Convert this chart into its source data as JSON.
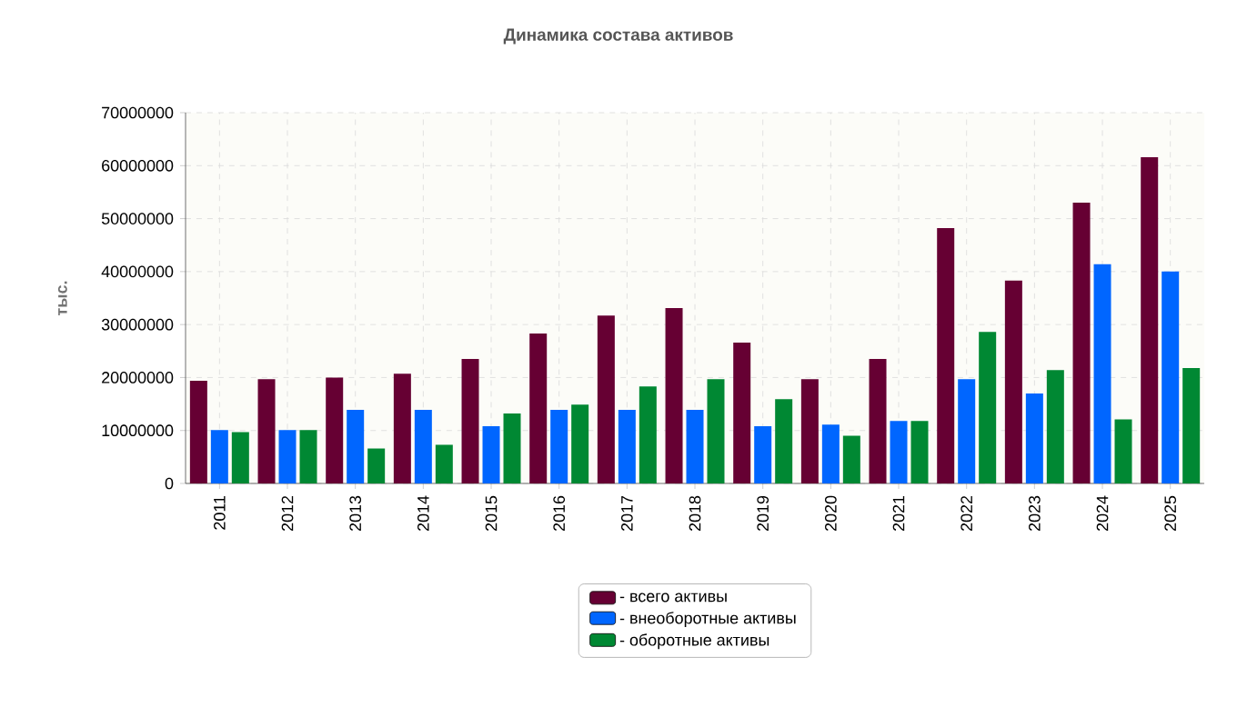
{
  "chart_data": {
    "type": "bar",
    "title": "Динамика состава активов",
    "ylabel": "тыс.",
    "categories": [
      "2011",
      "2012",
      "2013",
      "2014",
      "2015",
      "2016",
      "2017",
      "2018",
      "2019",
      "2020",
      "2021",
      "2022",
      "2023",
      "2024",
      "2025"
    ],
    "series": [
      {
        "name": "- всего активы",
        "color": "#660033",
        "values": [
          19400000,
          19700000,
          20000000,
          20700000,
          23500000,
          28300000,
          31700000,
          33100000,
          26600000,
          19700000,
          23500000,
          48200000,
          38300000,
          53000000,
          61600000
        ]
      },
      {
        "name": "- внеоборотные активы",
        "color": "#0066ff",
        "values": [
          10100000,
          10100000,
          13900000,
          13900000,
          10800000,
          13900000,
          13900000,
          13900000,
          10800000,
          11100000,
          11800000,
          19700000,
          17000000,
          41400000,
          40000000
        ]
      },
      {
        "name": "- оборотные активы",
        "color": "#008833",
        "values": [
          9700000,
          10100000,
          6600000,
          7300000,
          13200000,
          14900000,
          18300000,
          19700000,
          15900000,
          9000000,
          11800000,
          28600000,
          21400000,
          12100000,
          21800000
        ]
      }
    ],
    "ylim": [
      0,
      70000000
    ],
    "yticks": [
      0,
      10000000,
      20000000,
      30000000,
      40000000,
      50000000,
      60000000,
      70000000
    ],
    "grid": true,
    "legend": "bottom"
  }
}
